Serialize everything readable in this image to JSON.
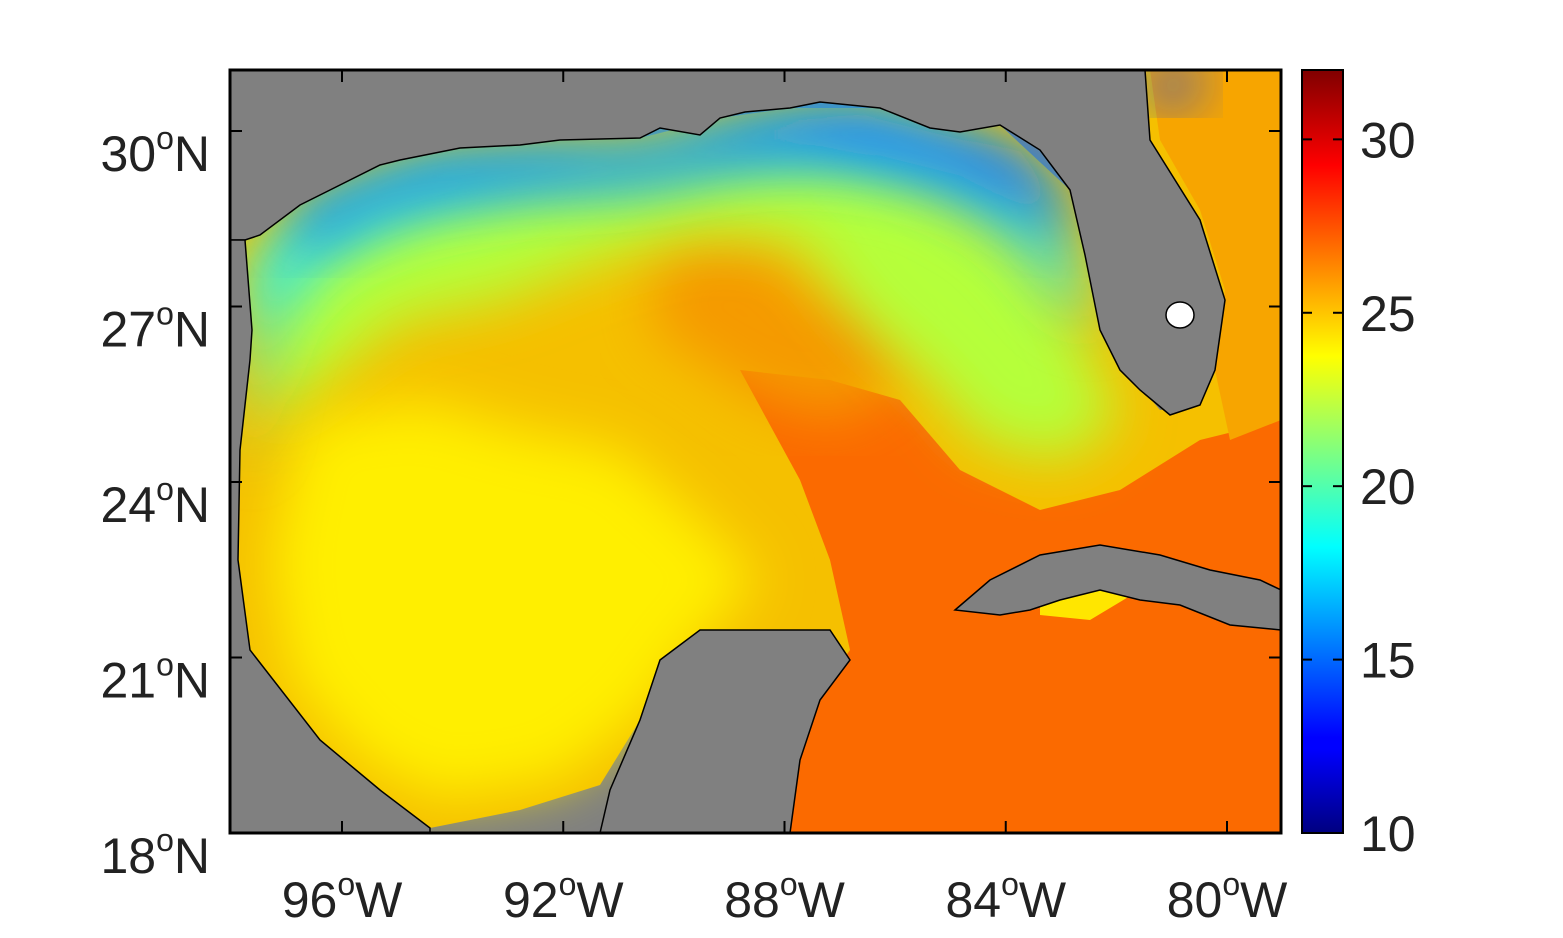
{
  "map": {
    "type": "sea-surface-heatmap",
    "x_axis": {
      "ticks": [
        {
          "lon": -96,
          "label": "96",
          "sup": "o",
          "suffix": "W"
        },
        {
          "lon": -92,
          "label": "92",
          "sup": "o",
          "suffix": "W"
        },
        {
          "lon": -88,
          "label": "88",
          "sup": "o",
          "suffix": "W"
        },
        {
          "lon": -84,
          "label": "84",
          "sup": "o",
          "suffix": "W"
        },
        {
          "lon": -80,
          "label": "80",
          "sup": "o",
          "suffix": "W"
        }
      ],
      "range": [
        -98,
        -79
      ]
    },
    "y_axis": {
      "ticks": [
        {
          "lat": 30,
          "label": "30",
          "sup": "o",
          "suffix": "N"
        },
        {
          "lat": 27,
          "label": "27",
          "sup": "o",
          "suffix": "N"
        },
        {
          "lat": 24,
          "label": "24",
          "sup": "o",
          "suffix": "N"
        },
        {
          "lat": 21,
          "label": "21",
          "sup": "o",
          "suffix": "N"
        },
        {
          "lat": 18,
          "label": "18",
          "sup": "o",
          "suffix": "N"
        }
      ],
      "range": [
        18,
        31
      ]
    },
    "land_color": "#808080",
    "colormap": "jet",
    "colorbar": {
      "range": [
        10,
        32
      ],
      "ticks": [
        {
          "value": 10,
          "label": "10"
        },
        {
          "value": 15,
          "label": "15"
        },
        {
          "value": 20,
          "label": "20"
        },
        {
          "value": 25,
          "label": "25"
        },
        {
          "value": 30,
          "label": "30"
        }
      ],
      "placement": "right"
    }
  }
}
